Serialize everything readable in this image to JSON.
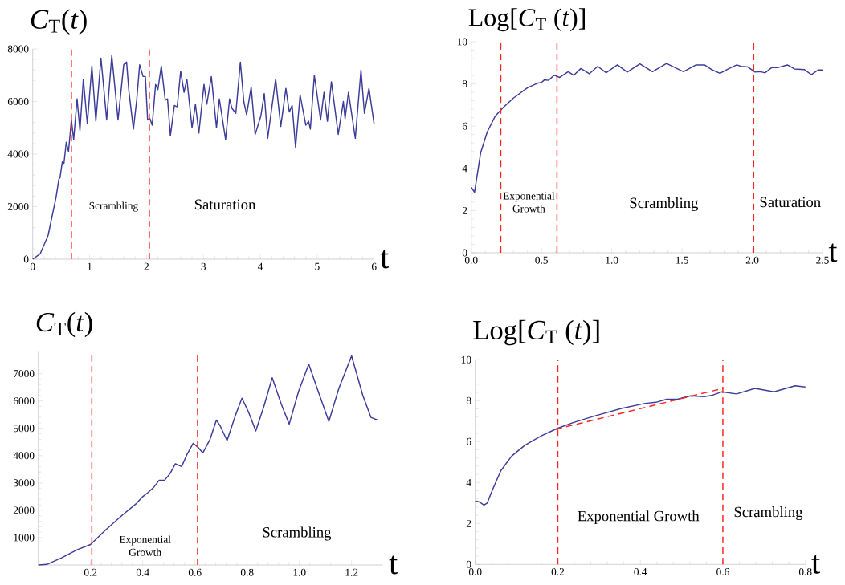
{
  "chart_data": [
    {
      "type": "line",
      "title": "*C*$_{T}$(*t*)",
      "xlabel": "t",
      "xlim": [
        0,
        6
      ],
      "ylim": [
        0,
        8000
      ],
      "xticks": [
        0,
        1,
        2,
        3,
        4,
        5,
        6
      ],
      "yticks": [
        0,
        2000,
        4000,
        6000,
        8000
      ],
      "series": [
        {
          "color": "#3d3d99",
          "x": [
            0,
            0.13,
            0.27,
            0.41,
            0.46,
            0.48,
            0.52,
            0.55,
            0.59,
            0.63,
            0.68,
            0.72,
            0.78,
            0.83,
            0.89,
            0.96,
            1.04,
            1.11,
            1.2,
            1.3,
            1.39,
            1.5,
            1.6,
            1.65,
            1.69,
            1.77,
            1.83,
            1.88,
            1.94,
            1.98,
            2.02,
            2.06,
            2.1,
            2.16,
            2.2,
            2.26,
            2.33,
            2.37,
            2.42,
            2.49,
            2.54,
            2.6,
            2.66,
            2.71,
            2.8,
            2.86,
            2.92,
            3.01,
            3.06,
            3.14,
            3.23,
            3.28,
            3.39,
            3.46,
            3.5,
            3.57,
            3.65,
            3.71,
            3.76,
            3.84,
            3.91,
            4.01,
            4.07,
            4.13,
            4.27,
            4.36,
            4.45,
            4.51,
            4.56,
            4.62,
            4.7,
            4.8,
            4.85,
            4.88,
            4.95,
            5.06,
            5.12,
            5.18,
            5.25,
            5.37,
            5.46,
            5.49,
            5.55,
            5.67,
            5.77,
            5.83,
            5.91,
            6
          ],
          "values": [
            0,
            200,
            900,
            2350,
            3050,
            3100,
            3700,
            3650,
            4450,
            4100,
            5300,
            4550,
            6100,
            4900,
            6850,
            5150,
            7350,
            5250,
            7650,
            5300,
            7750,
            5300,
            7400,
            7500,
            6400,
            4950,
            6100,
            7400,
            6950,
            6950,
            5300,
            5350,
            5100,
            6650,
            6450,
            7350,
            6050,
            6100,
            4700,
            5850,
            5800,
            7150,
            6350,
            6850,
            5000,
            5900,
            4800,
            6650,
            5900,
            6950,
            5000,
            6100,
            4550,
            6100,
            5750,
            5550,
            7500,
            6000,
            5500,
            6550,
            4750,
            5450,
            6300,
            4600,
            6850,
            5050,
            6500,
            5600,
            5850,
            4250,
            6250,
            5100,
            5250,
            4950,
            7000,
            5300,
            6350,
            5250,
            6750,
            4750,
            6000,
            5350,
            6350,
            4600,
            7200,
            5550,
            6500,
            5150
          ]
        }
      ],
      "ref_lines": [
        {
          "axis": "x",
          "value": 0.68,
          "color": "#ff2020",
          "line_style": "dashed"
        },
        {
          "axis": "x",
          "value": 2.05,
          "color": "#ff2020",
          "line_style": "dashed"
        }
      ],
      "annotations": [
        "Scrambling",
        "Saturation"
      ]
    },
    {
      "type": "line",
      "title": "Log[*C*$_{T}$ (*t*)]",
      "xlabel": "t",
      "xlim": [
        0,
        2.5
      ],
      "ylim": [
        0,
        10
      ],
      "xticks": [
        {
          "value": 0,
          "label": "0.0"
        },
        0.5,
        {
          "value": 1,
          "label": "1.0"
        },
        1.5,
        {
          "value": 2,
          "label": "2.0"
        },
        2.5
      ],
      "yticks": [
        0,
        2,
        4,
        6,
        8,
        10
      ],
      "series": [
        {
          "color": "#3d3d99",
          "x": [
            0,
            0.023,
            0.038,
            0.067,
            0.114,
            0.17,
            0.23,
            0.3,
            0.4,
            0.47,
            0.5,
            0.52,
            0.55,
            0.59,
            0.63,
            0.69,
            0.73,
            0.78,
            0.84,
            0.9,
            0.96,
            1.04,
            1.11,
            1.2,
            1.29,
            1.39,
            1.51,
            1.6,
            1.66,
            1.71,
            1.77,
            1.83,
            1.89,
            1.92,
            1.97,
            2.02,
            2.06,
            2.09,
            2.14,
            2.18,
            2.25,
            2.3,
            2.37,
            2.42,
            2.47,
            2.5
          ],
          "values": [
            3.1,
            2.87,
            3.5,
            4.74,
            5.73,
            6.47,
            6.9,
            7.33,
            7.82,
            8.03,
            8.07,
            8.19,
            8.17,
            8.41,
            8.31,
            8.58,
            8.41,
            8.73,
            8.48,
            8.83,
            8.53,
            8.9,
            8.56,
            8.95,
            8.58,
            8.97,
            8.58,
            8.9,
            8.9,
            8.68,
            8.5,
            8.71,
            8.9,
            8.83,
            8.8,
            8.56,
            8.58,
            8.52,
            8.78,
            8.77,
            8.9,
            8.71,
            8.68,
            8.44,
            8.66,
            8.66
          ]
        }
      ],
      "ref_lines": [
        {
          "axis": "x",
          "value": 0.21,
          "color": "#ff2020",
          "line_style": "dashed"
        },
        {
          "axis": "x",
          "value": 0.61,
          "color": "#ff2020",
          "line_style": "dashed"
        },
        {
          "axis": "x",
          "value": 2.01,
          "color": "#ff2020",
          "line_style": "dashed"
        }
      ],
      "annotations": [
        "Exponential Growth",
        "Scrambling",
        "Saturation"
      ]
    },
    {
      "type": "line",
      "title": "*C*$_{T}$(*t*)",
      "xlabel": "t",
      "xlim": [
        0,
        1.32
      ],
      "ylim": [
        0,
        7800
      ],
      "xticks": [
        0.2,
        0.4,
        0.6,
        0.8,
        {
          "value": 1,
          "label": "1.0"
        },
        1.2
      ],
      "yticks": [
        1000,
        2000,
        3000,
        4000,
        5000,
        6000,
        7000
      ],
      "series": [
        {
          "color": "#3d3d99",
          "x": [
            0,
            0.033,
            0.089,
            0.15,
            0.2,
            0.26,
            0.325,
            0.376,
            0.4,
            0.42,
            0.443,
            0.463,
            0.484,
            0.505,
            0.525,
            0.549,
            0.57,
            0.593,
            0.612,
            0.63,
            0.658,
            0.682,
            0.696,
            0.723,
            0.756,
            0.78,
            0.805,
            0.833,
            0.864,
            0.896,
            0.93,
            0.961,
            0.997,
            1.036,
            1.074,
            1.113,
            1.151,
            1.2,
            1.243,
            1.274,
            1.3
          ],
          "values": [
            0,
            20,
            260,
            560,
            750,
            1300,
            1850,
            2250,
            2500,
            2650,
            2850,
            3100,
            3100,
            3350,
            3700,
            3600,
            4050,
            4450,
            4300,
            4100,
            4600,
            5300,
            5100,
            4550,
            5500,
            6100,
            5600,
            4900,
            5800,
            6850,
            5900,
            5150,
            6350,
            7350,
            6300,
            5250,
            6450,
            7650,
            6200,
            5400,
            5300
          ]
        }
      ],
      "ref_lines": [
        {
          "axis": "x",
          "value": 0.205,
          "color": "#ff2020",
          "line_style": "dashed"
        },
        {
          "axis": "x",
          "value": 0.61,
          "color": "#ff2020",
          "line_style": "dashed"
        }
      ],
      "annotations": [
        "Exponential Growth",
        "Scrambling"
      ]
    },
    {
      "type": "line",
      "title": "Log[*C*$_{T}$ (*t*)]",
      "xlabel": "t",
      "xlim": [
        0,
        0.8
      ],
      "ylim": [
        0,
        10
      ],
      "xticks": [
        {
          "value": 0,
          "label": "0.0"
        },
        0.2,
        0.4,
        0.6,
        0.8
      ],
      "yticks": [
        0,
        2,
        4,
        6,
        8,
        10
      ],
      "series": [
        {
          "color": "#3d3d99",
          "x": [
            0,
            0.01,
            0.021,
            0.029,
            0.042,
            0.062,
            0.088,
            0.12,
            0.159,
            0.198,
            0.237,
            0.289,
            0.354,
            0.412,
            0.438,
            0.464,
            0.49,
            0.522,
            0.555,
            0.575,
            0.597,
            0.633,
            0.678,
            0.724,
            0.775,
            0.8
          ],
          "values": [
            3.1,
            3.05,
            2.9,
            3,
            3.66,
            4.58,
            5.29,
            5.82,
            6.27,
            6.64,
            6.93,
            7.25,
            7.62,
            7.87,
            7.92,
            8.07,
            8.07,
            8.24,
            8.2,
            8.27,
            8.43,
            8.33,
            8.6,
            8.43,
            8.73,
            8.67
          ]
        },
        {
          "type": "line",
          "color": "#ff2020",
          "line_style": "dashed",
          "x": [
            0.195,
            0.6
          ],
          "values": [
            6.6,
            8.6
          ]
        }
      ],
      "ref_lines": [
        {
          "axis": "x",
          "value": 0.2,
          "color": "#ff2020",
          "line_style": "dashed"
        },
        {
          "axis": "x",
          "value": 0.6,
          "color": "#ff2020",
          "line_style": "dashed"
        }
      ],
      "annotations": [
        "Exponential Growth",
        "Scrambling"
      ]
    }
  ]
}
